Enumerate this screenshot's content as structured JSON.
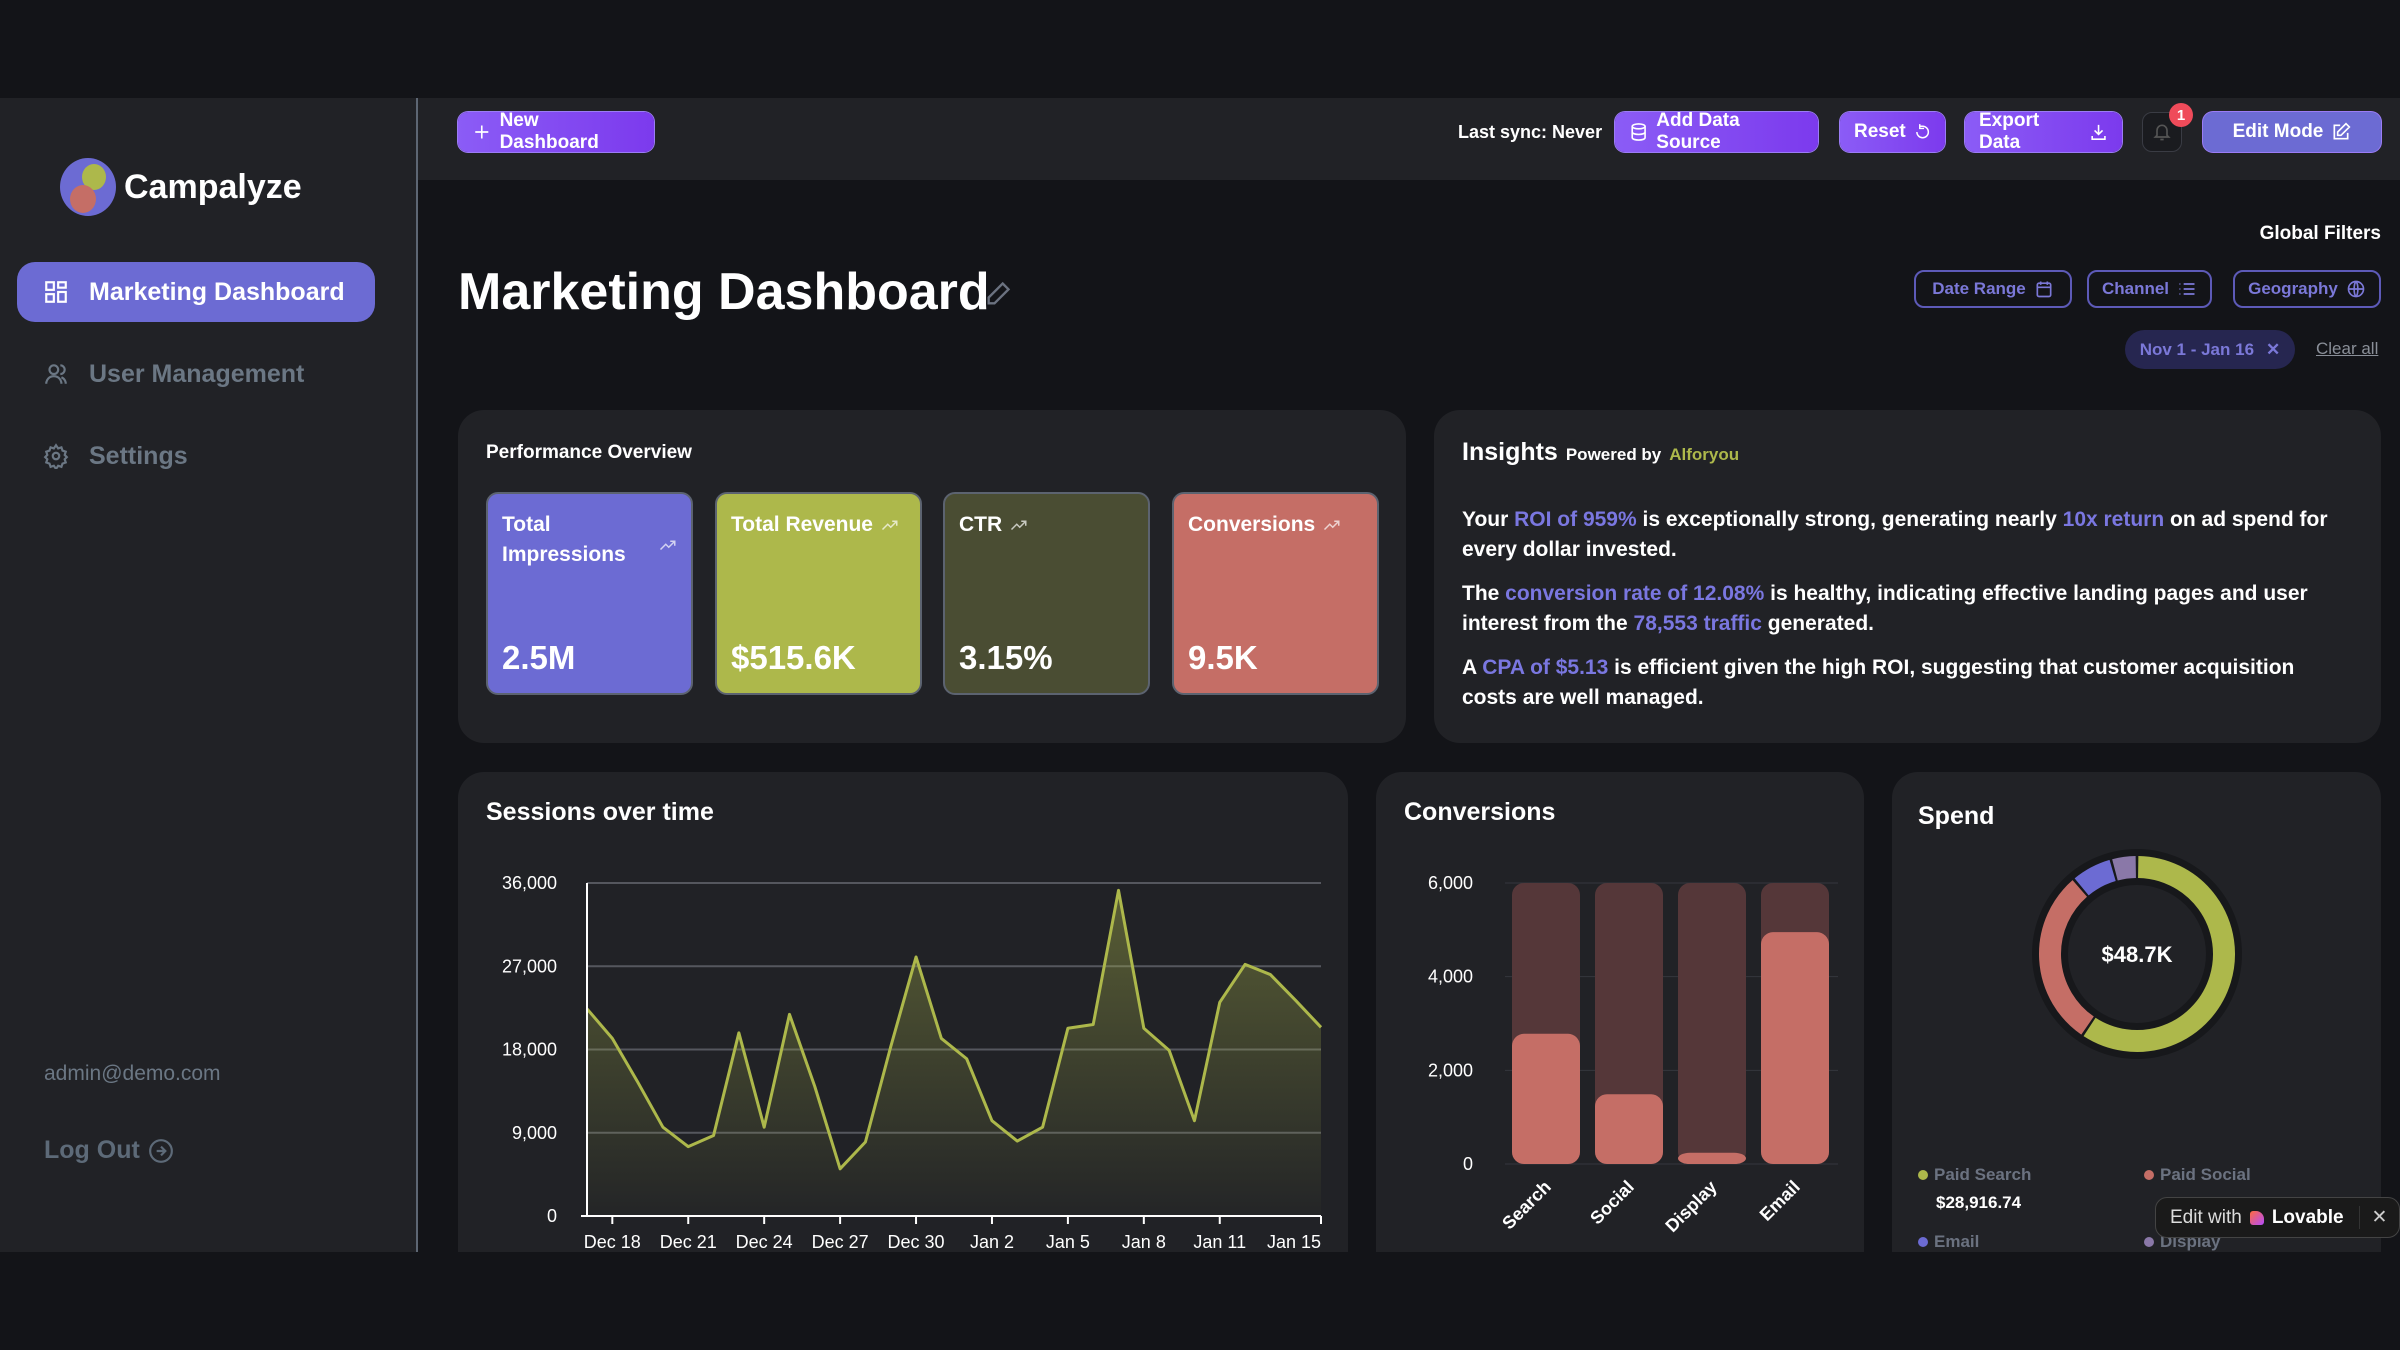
{
  "app": {
    "name": "Campalyze",
    "user_email": "admin@demo.com",
    "logout_label": "Log Out"
  },
  "sidebar": {
    "items": [
      {
        "label": "Marketing Dashboard",
        "icon": "grid-icon",
        "active": true
      },
      {
        "label": "User Management",
        "icon": "users-icon"
      },
      {
        "label": "Settings",
        "icon": "gear-icon"
      }
    ]
  },
  "topbar": {
    "new_dashboard": "New Dashboard",
    "last_sync": "Last sync: Never",
    "add_data_source": "Add Data Source",
    "reset": "Reset",
    "export_data": "Export Data",
    "notifications_count": "1",
    "edit_mode": "Edit Mode"
  },
  "page": {
    "title": "Marketing Dashboard"
  },
  "filters": {
    "heading": "Global Filters",
    "buttons": [
      "Date Range",
      "Channel",
      "Geography"
    ],
    "active_chip": "Nov 1 - Jan 16",
    "clear_all": "Clear all"
  },
  "performance": {
    "title": "Performance Overview",
    "kpis": [
      {
        "label": "Total Impressions",
        "value": "2.5M",
        "color": "#6c6bd3"
      },
      {
        "label": "Total Revenue",
        "value": "$515.6K",
        "color": "#adb84b"
      },
      {
        "label": "CTR",
        "value": "3.15%",
        "color": "#4a4d33"
      },
      {
        "label": "Conversions",
        "value": "9.5K",
        "color": "#c56e66"
      }
    ]
  },
  "insights": {
    "title": "Insights",
    "powered_by": "Powered by",
    "provider": "Alforyou",
    "paragraphs": [
      [
        {
          "t": "Your "
        },
        {
          "t": "ROI of 959%",
          "hl": true
        },
        {
          "t": " is exceptionally strong, generating nearly "
        },
        {
          "t": "10x return",
          "hl": true
        },
        {
          "t": " on ad spend for every dollar invested."
        }
      ],
      [
        {
          "t": "The "
        },
        {
          "t": "conversion rate of 12.08%",
          "hl": true
        },
        {
          "t": " is healthy, indicating effective landing pages and user interest from the "
        },
        {
          "t": "78,553 traffic",
          "hl": true
        },
        {
          "t": " generated."
        }
      ],
      [
        {
          "t": "A "
        },
        {
          "t": "CPA of $5.13",
          "hl": true
        },
        {
          "t": " is efficient given the high ROI, suggesting that customer acquisition costs are well managed."
        }
      ]
    ]
  },
  "chart_data": [
    {
      "type": "area",
      "title": "Sessions over time",
      "ylim": [
        0,
        36000
      ],
      "yticks": [
        "36,000",
        "27,000",
        "18,000",
        "9,000",
        "0"
      ],
      "grid": true,
      "color": "#adb84b",
      "x": [
        "Dec 17",
        "Dec 18",
        "Dec 19",
        "Dec 20",
        "Dec 21",
        "Dec 22",
        "Dec 23",
        "Dec 24",
        "Dec 25",
        "Dec 26",
        "Dec 27",
        "Dec 28",
        "Dec 29",
        "Dec 30",
        "Dec 31",
        "Jan 1",
        "Jan 2",
        "Jan 3",
        "Jan 4",
        "Jan 5",
        "Jan 6",
        "Jan 7",
        "Jan 8",
        "Jan 9",
        "Jan 10",
        "Jan 11",
        "Jan 12",
        "Jan 13",
        "Jan 14",
        "Jan 15"
      ],
      "values": [
        22400,
        19200,
        14500,
        9600,
        7500,
        8700,
        19800,
        9600,
        21800,
        14000,
        5100,
        8000,
        18300,
        28000,
        19200,
        17000,
        10300,
        8100,
        9600,
        20300,
        20700,
        35200,
        20300,
        17900,
        10300,
        23100,
        27200,
        26100,
        23300,
        20400
      ],
      "xticks": [
        "Dec 18",
        "Dec 21",
        "Dec 24",
        "Dec 27",
        "Dec 30",
        "Jan 2",
        "Jan 5",
        "Jan 8",
        "Jan 11",
        "Jan 15"
      ]
    },
    {
      "type": "bar",
      "title": "Conversions",
      "categories": [
        "Search",
        "Social",
        "Display",
        "Email"
      ],
      "values": [
        2780,
        1490,
        240,
        4950
      ],
      "ylim": [
        0,
        6000
      ],
      "yticks": [
        "6,000",
        "4,000",
        "2,000",
        "0"
      ],
      "grid": true,
      "color": "#c56e66",
      "track_color": "#553739"
    },
    {
      "type": "pie",
      "title": "Spend",
      "center_label": "$48.7K",
      "series": [
        {
          "name": "Paid Search",
          "share_percent": 59.4,
          "value_label": "$28,916.74",
          "color": "#adb84b"
        },
        {
          "name": "Paid Social",
          "share_percent": 29.4,
          "color": "#c56e66"
        },
        {
          "name": "Email",
          "share_percent": 6.9,
          "color": "#6c6bd3"
        },
        {
          "name": "Display",
          "share_percent": 4.3,
          "color": "#8a78a8"
        }
      ]
    }
  ],
  "badge": {
    "prefix": "Edit with",
    "brand": "Lovable"
  }
}
